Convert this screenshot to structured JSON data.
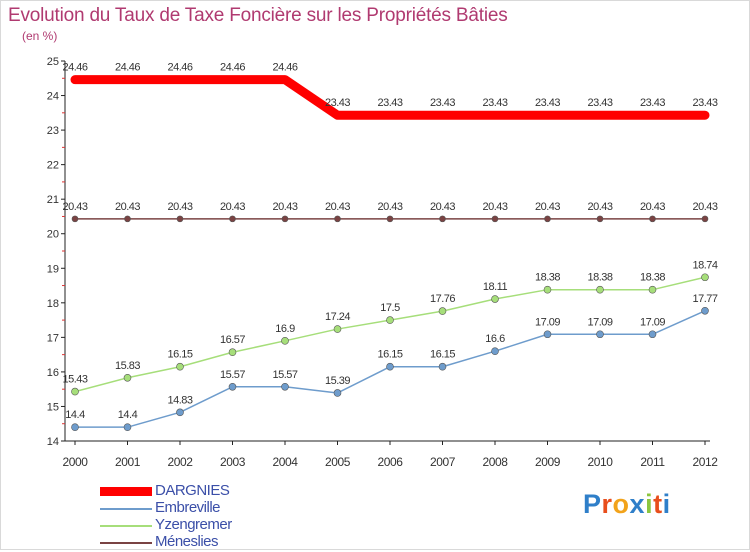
{
  "title": "Evolution du Taux de Taxe Foncière sur les Propriétés Bâties",
  "unit": "(en %)",
  "chart_data": {
    "type": "line",
    "title": "Evolution du Taux de Taxe Foncière sur les Propriétés Bâties",
    "ylabel": "(en %)",
    "xlabel": "",
    "categories": [
      "2000",
      "2001",
      "2002",
      "2003",
      "2004",
      "2005",
      "2006",
      "2007",
      "2008",
      "2009",
      "2010",
      "2011",
      "2012"
    ],
    "ylim": [
      14,
      25
    ],
    "yticks": [
      14,
      15,
      16,
      17,
      18,
      19,
      20,
      21,
      22,
      23,
      24,
      25
    ],
    "series": [
      {
        "name": "DARGNIES",
        "color": "#ff0000",
        "values": [
          24.46,
          24.46,
          24.46,
          24.46,
          24.46,
          23.43,
          23.43,
          23.43,
          23.43,
          23.43,
          23.43,
          23.43,
          23.43
        ]
      },
      {
        "name": "Embreville",
        "color": "#6e9ccc",
        "values": [
          14.4,
          14.4,
          14.83,
          15.57,
          15.57,
          15.39,
          16.15,
          16.15,
          16.6,
          17.09,
          17.09,
          17.09,
          17.77
        ]
      },
      {
        "name": "Yzengremer",
        "color": "#a6de7a",
        "values": [
          15.43,
          15.83,
          16.15,
          16.57,
          16.9,
          17.24,
          17.5,
          17.76,
          18.11,
          18.38,
          18.38,
          18.38,
          18.74
        ]
      },
      {
        "name": "Méneslies",
        "color": "#7a4343",
        "values": [
          20.43,
          20.43,
          20.43,
          20.43,
          20.43,
          20.43,
          20.43,
          20.43,
          20.43,
          20.43,
          20.43,
          20.43,
          20.43
        ]
      }
    ],
    "legend": "bottom-left"
  },
  "legend": {
    "items": [
      "DARGNIES",
      "Embreville",
      "Yzengremer",
      "Méneslies"
    ]
  },
  "logo": {
    "text": "Proxiti",
    "letters": [
      "P",
      "r",
      "o",
      "x",
      "i",
      "t",
      "i"
    ],
    "colors": [
      "#2f7fc9",
      "#e84e1c",
      "#f2a31b",
      "#2f7fc9",
      "#8cc63f",
      "#e84e1c",
      "#2f7fc9"
    ]
  }
}
